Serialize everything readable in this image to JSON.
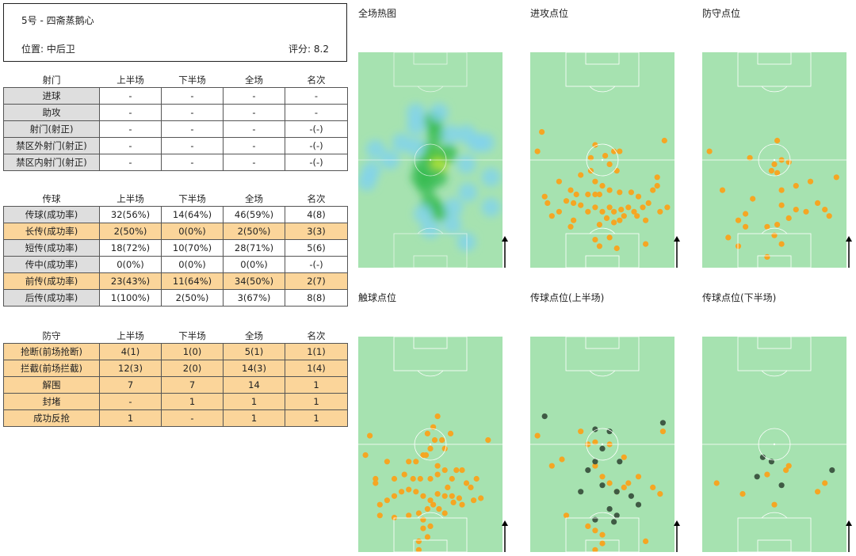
{
  "player": {
    "name": "5号 - 四斋蒸鹅心",
    "position": "位置: 中后卫",
    "rating": "评分: 8.2"
  },
  "shooting": {
    "headers": [
      "射门",
      "上半场",
      "下半场",
      "全场",
      "名次"
    ],
    "rows": [
      {
        "label": "进球",
        "values": [
          "-",
          "-",
          "-",
          "-"
        ],
        "highlight": false
      },
      {
        "label": "助攻",
        "values": [
          "-",
          "-",
          "-",
          "-"
        ],
        "highlight": false
      },
      {
        "label": "射门(射正)",
        "values": [
          "-",
          "-",
          "-",
          "-(-)"
        ],
        "highlight": false
      },
      {
        "label": "禁区外射门(射正)",
        "values": [
          "-",
          "-",
          "-",
          "-(-)"
        ],
        "highlight": false
      },
      {
        "label": "禁区内射门(射正)",
        "values": [
          "-",
          "-",
          "-",
          "-(-)"
        ],
        "highlight": false
      }
    ]
  },
  "passing": {
    "headers": [
      "传球",
      "上半场",
      "下半场",
      "全场",
      "名次"
    ],
    "rows": [
      {
        "label": "传球(成功率)",
        "values": [
          "32(56%)",
          "14(64%)",
          "46(59%)",
          "4(8)"
        ],
        "highlight": false
      },
      {
        "label": "长传(成功率)",
        "values": [
          "2(50%)",
          "0(0%)",
          "2(50%)",
          "3(3)"
        ],
        "highlight": true
      },
      {
        "label": "短传(成功率)",
        "values": [
          "18(72%)",
          "10(70%)",
          "28(71%)",
          "5(6)"
        ],
        "highlight": false
      },
      {
        "label": "传中(成功率)",
        "values": [
          "0(0%)",
          "0(0%)",
          "0(0%)",
          "-(-)"
        ],
        "highlight": false
      },
      {
        "label": "前传(成功率)",
        "values": [
          "23(43%)",
          "11(64%)",
          "34(50%)",
          "2(7)"
        ],
        "highlight": true
      },
      {
        "label": "后传(成功率)",
        "values": [
          "1(100%)",
          "2(50%)",
          "3(67%)",
          "8(8)"
        ],
        "highlight": false
      }
    ]
  },
  "defense": {
    "headers": [
      "防守",
      "上半场",
      "下半场",
      "全场",
      "名次"
    ],
    "rows": [
      {
        "label": "抢断(前场抢断)",
        "values": [
          "4(1)",
          "1(0)",
          "5(1)",
          "1(1)"
        ],
        "highlight": true
      },
      {
        "label": "拦截(前场拦截)",
        "values": [
          "12(3)",
          "2(0)",
          "14(3)",
          "1(4)"
        ],
        "highlight": true
      },
      {
        "label": "解围",
        "values": [
          "7",
          "7",
          "14",
          "1"
        ],
        "highlight": true
      },
      {
        "label": "封堵",
        "values": [
          "-",
          "1",
          "1",
          "1"
        ],
        "highlight": true
      },
      {
        "label": "成功反抢",
        "values": [
          "1",
          "-",
          "1",
          "1"
        ],
        "highlight": true
      }
    ]
  },
  "panels": {
    "heatmap_title": "全场热图",
    "attack_title": "进攻点位",
    "defense_title": "防守点位",
    "touch_title": "触球点位",
    "pass1_title": "传球点位(上半场)",
    "pass2_title": "传球点位(下半场)"
  },
  "colors": {
    "pitch": "#a6e2b0",
    "line": "#ffffff",
    "dot": "#f5a623",
    "dark_dot": "#3f5a44",
    "highlight": "#fbd59a",
    "label_bg": "#dedede"
  },
  "pitch_points": {
    "heatmap": [
      [
        0.56,
        0.52
      ],
      [
        0.53,
        0.49
      ],
      [
        0.62,
        0.47
      ],
      [
        0.54,
        0.38
      ],
      [
        0.5,
        0.46
      ],
      [
        0.45,
        0.53
      ],
      [
        0.47,
        0.62
      ],
      [
        0.4,
        0.44
      ],
      [
        0.3,
        0.42
      ],
      [
        0.12,
        0.45
      ],
      [
        0.09,
        0.55
      ],
      [
        0.06,
        0.6
      ],
      [
        0.22,
        0.5
      ],
      [
        0.52,
        0.32
      ],
      [
        0.56,
        0.28
      ],
      [
        0.55,
        0.58
      ],
      [
        0.5,
        0.7
      ],
      [
        0.56,
        0.74
      ],
      [
        0.75,
        0.88
      ],
      [
        0.66,
        0.72
      ],
      [
        0.76,
        0.65
      ],
      [
        0.75,
        0.52
      ],
      [
        0.88,
        0.42
      ],
      [
        0.92,
        0.58
      ],
      [
        0.92,
        0.72
      ],
      [
        0.82,
        0.42
      ],
      [
        0.75,
        0.38
      ],
      [
        0.64,
        0.38
      ],
      [
        0.4,
        0.28
      ],
      [
        0.4,
        0.34
      ],
      [
        0.43,
        0.58
      ],
      [
        0.5,
        0.82
      ],
      [
        0.45,
        0.75
      ],
      [
        0.65,
        0.8
      ]
    ],
    "attack": [
      [
        0.08,
        0.37
      ],
      [
        0.05,
        0.46
      ],
      [
        0.45,
        0.43
      ],
      [
        0.58,
        0.46
      ],
      [
        0.52,
        0.48
      ],
      [
        0.55,
        0.52
      ],
      [
        0.6,
        0.55
      ],
      [
        0.42,
        0.55
      ],
      [
        0.35,
        0.57
      ],
      [
        0.45,
        0.6
      ],
      [
        0.5,
        0.62
      ],
      [
        0.2,
        0.6
      ],
      [
        0.1,
        0.67
      ],
      [
        0.12,
        0.7
      ],
      [
        0.28,
        0.64
      ],
      [
        0.32,
        0.66
      ],
      [
        0.4,
        0.66
      ],
      [
        0.45,
        0.66
      ],
      [
        0.48,
        0.66
      ],
      [
        0.55,
        0.64
      ],
      [
        0.62,
        0.65
      ],
      [
        0.7,
        0.65
      ],
      [
        0.75,
        0.67
      ],
      [
        0.85,
        0.64
      ],
      [
        0.88,
        0.62
      ],
      [
        0.82,
        0.7
      ],
      [
        0.78,
        0.72
      ],
      [
        0.72,
        0.74
      ],
      [
        0.68,
        0.72
      ],
      [
        0.63,
        0.73
      ],
      [
        0.58,
        0.74
      ],
      [
        0.55,
        0.72
      ],
      [
        0.5,
        0.74
      ],
      [
        0.45,
        0.72
      ],
      [
        0.4,
        0.74
      ],
      [
        0.35,
        0.71
      ],
      [
        0.3,
        0.7
      ],
      [
        0.25,
        0.69
      ],
      [
        0.2,
        0.74
      ],
      [
        0.15,
        0.76
      ],
      [
        0.3,
        0.78
      ],
      [
        0.28,
        0.81
      ],
      [
        0.48,
        0.8
      ],
      [
        0.53,
        0.77
      ],
      [
        0.58,
        0.79
      ],
      [
        0.62,
        0.78
      ],
      [
        0.65,
        0.76
      ],
      [
        0.74,
        0.76
      ],
      [
        0.8,
        0.78
      ],
      [
        0.9,
        0.74
      ],
      [
        0.95,
        0.72
      ],
      [
        0.45,
        0.87
      ],
      [
        0.55,
        0.86
      ],
      [
        0.48,
        0.9
      ],
      [
        0.6,
        0.91
      ],
      [
        0.8,
        0.89
      ],
      [
        0.93,
        0.41
      ],
      [
        0.62,
        0.46
      ],
      [
        0.42,
        0.49
      ],
      [
        0.88,
        0.58
      ]
    ],
    "defense": [
      [
        0.05,
        0.46
      ],
      [
        0.33,
        0.49
      ],
      [
        0.5,
        0.52
      ],
      [
        0.55,
        0.5
      ],
      [
        0.6,
        0.51
      ],
      [
        0.48,
        0.55
      ],
      [
        0.52,
        0.56
      ],
      [
        0.75,
        0.6
      ],
      [
        0.65,
        0.62
      ],
      [
        0.55,
        0.64
      ],
      [
        0.8,
        0.7
      ],
      [
        0.85,
        0.73
      ],
      [
        0.72,
        0.74
      ],
      [
        0.6,
        0.77
      ],
      [
        0.52,
        0.8
      ],
      [
        0.45,
        0.81
      ],
      [
        0.3,
        0.81
      ],
      [
        0.25,
        0.78
      ],
      [
        0.18,
        0.86
      ],
      [
        0.25,
        0.9
      ],
      [
        0.5,
        0.85
      ],
      [
        0.55,
        0.89
      ],
      [
        0.45,
        0.95
      ],
      [
        0.88,
        0.76
      ],
      [
        0.93,
        0.58
      ],
      [
        0.65,
        0.73
      ],
      [
        0.55,
        0.71
      ],
      [
        0.14,
        0.64
      ],
      [
        0.52,
        0.41
      ],
      [
        0.35,
        0.68
      ],
      [
        0.3,
        0.75
      ]
    ],
    "touch": [
      [
        0.08,
        0.46
      ],
      [
        0.05,
        0.55
      ],
      [
        0.55,
        0.37
      ],
      [
        0.48,
        0.45
      ],
      [
        0.53,
        0.48
      ],
      [
        0.58,
        0.48
      ],
      [
        0.6,
        0.52
      ],
      [
        0.5,
        0.52
      ],
      [
        0.45,
        0.55
      ],
      [
        0.4,
        0.58
      ],
      [
        0.35,
        0.58
      ],
      [
        0.2,
        0.58
      ],
      [
        0.12,
        0.66
      ],
      [
        0.12,
        0.68
      ],
      [
        0.25,
        0.66
      ],
      [
        0.32,
        0.64
      ],
      [
        0.38,
        0.66
      ],
      [
        0.43,
        0.66
      ],
      [
        0.5,
        0.66
      ],
      [
        0.55,
        0.64
      ],
      [
        0.6,
        0.62
      ],
      [
        0.65,
        0.66
      ],
      [
        0.72,
        0.62
      ],
      [
        0.75,
        0.68
      ],
      [
        0.78,
        0.7
      ],
      [
        0.82,
        0.66
      ],
      [
        0.85,
        0.75
      ],
      [
        0.7,
        0.75
      ],
      [
        0.65,
        0.74
      ],
      [
        0.6,
        0.74
      ],
      [
        0.55,
        0.73
      ],
      [
        0.5,
        0.76
      ],
      [
        0.45,
        0.74
      ],
      [
        0.4,
        0.72
      ],
      [
        0.35,
        0.71
      ],
      [
        0.3,
        0.72
      ],
      [
        0.25,
        0.74
      ],
      [
        0.2,
        0.76
      ],
      [
        0.15,
        0.78
      ],
      [
        0.15,
        0.83
      ],
      [
        0.25,
        0.84
      ],
      [
        0.35,
        0.83
      ],
      [
        0.42,
        0.82
      ],
      [
        0.48,
        0.8
      ],
      [
        0.52,
        0.78
      ],
      [
        0.56,
        0.8
      ],
      [
        0.6,
        0.82
      ],
      [
        0.66,
        0.77
      ],
      [
        0.72,
        0.78
      ],
      [
        0.8,
        0.76
      ],
      [
        0.45,
        0.85
      ],
      [
        0.5,
        0.88
      ],
      [
        0.45,
        0.89
      ],
      [
        0.48,
        0.93
      ],
      [
        0.42,
        0.95
      ],
      [
        0.42,
        0.99
      ],
      [
        0.9,
        0.48
      ],
      [
        0.64,
        0.45
      ],
      [
        0.52,
        0.42
      ],
      [
        0.47,
        0.55
      ],
      [
        0.55,
        0.6
      ],
      [
        0.62,
        0.7
      ],
      [
        0.68,
        0.62
      ]
    ],
    "pass1_orange": [
      [
        0.05,
        0.46
      ],
      [
        0.35,
        0.44
      ],
      [
        0.4,
        0.5
      ],
      [
        0.45,
        0.49
      ],
      [
        0.55,
        0.5
      ],
      [
        0.65,
        0.56
      ],
      [
        0.22,
        0.57
      ],
      [
        0.15,
        0.6
      ],
      [
        0.45,
        0.6
      ],
      [
        0.5,
        0.65
      ],
      [
        0.55,
        0.68
      ],
      [
        0.65,
        0.7
      ],
      [
        0.6,
        0.72
      ],
      [
        0.68,
        0.68
      ],
      [
        0.75,
        0.65
      ],
      [
        0.85,
        0.7
      ],
      [
        0.9,
        0.73
      ],
      [
        0.25,
        0.83
      ],
      [
        0.4,
        0.88
      ],
      [
        0.45,
        0.9
      ],
      [
        0.5,
        0.92
      ],
      [
        0.5,
        0.96
      ],
      [
        0.45,
        0.99
      ],
      [
        0.8,
        0.95
      ],
      [
        0.92,
        0.44
      ]
    ],
    "pass1_dark": [
      [
        0.1,
        0.37
      ],
      [
        0.45,
        0.43
      ],
      [
        0.55,
        0.44
      ],
      [
        0.5,
        0.52
      ],
      [
        0.62,
        0.58
      ],
      [
        0.45,
        0.58
      ],
      [
        0.4,
        0.62
      ],
      [
        0.5,
        0.69
      ],
      [
        0.35,
        0.72
      ],
      [
        0.6,
        0.72
      ],
      [
        0.7,
        0.74
      ],
      [
        0.55,
        0.8
      ],
      [
        0.75,
        0.78
      ],
      [
        0.45,
        0.85
      ],
      [
        0.58,
        0.86
      ],
      [
        0.6,
        0.83
      ],
      [
        0.92,
        0.4
      ]
    ],
    "pass2_orange": [
      [
        0.1,
        0.68
      ],
      [
        0.28,
        0.73
      ],
      [
        0.58,
        0.62
      ],
      [
        0.6,
        0.6
      ],
      [
        0.45,
        0.64
      ],
      [
        0.8,
        0.72
      ],
      [
        0.85,
        0.68
      ],
      [
        0.5,
        0.78
      ]
    ],
    "pass2_dark": [
      [
        0.42,
        0.56
      ],
      [
        0.48,
        0.58
      ],
      [
        0.38,
        0.65
      ],
      [
        0.55,
        0.69
      ],
      [
        0.9,
        0.62
      ]
    ]
  }
}
